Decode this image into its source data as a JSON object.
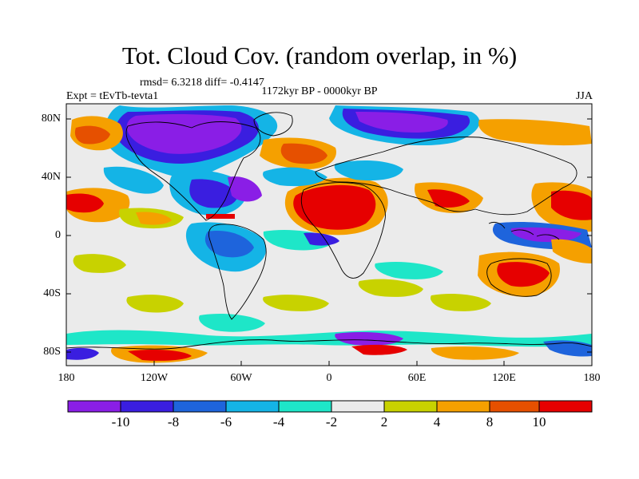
{
  "map": {
    "title": "Tot. Cloud Cov. (random overlap, in %)",
    "stats": "rmsd= 6.3218  diff= -0.4147",
    "period": "1172kyr BP - 0000kyr BP",
    "experiment": "Expt = tEvTb-tevta1",
    "season": "JJA",
    "lat_labels": [
      "80N",
      "40N",
      "0",
      "40S",
      "80S"
    ],
    "lon_labels": [
      "180",
      "120W",
      "60W",
      "0",
      "60E",
      "120E",
      "180"
    ]
  },
  "colorbar": {
    "labels": [
      "-10",
      "-8",
      "-6",
      "-4",
      "-2",
      "2",
      "4",
      "8",
      "10"
    ],
    "colors": [
      "#8a1ee6",
      "#3a1ee0",
      "#1e64dc",
      "#14b4e6",
      "#1ee6c8",
      "#ebebeb",
      "#c8d200",
      "#f5a000",
      "#e65000",
      "#e60000"
    ]
  },
  "palette": {
    "neutral": "#ebebeb",
    "deep_purple": "#8a1ee6",
    "blue": "#3a1ee0",
    "mid_blue": "#1e64dc",
    "sky": "#14b4e6",
    "aqua": "#1ee6c8",
    "yellow": "#c8d200",
    "orange": "#f5a000",
    "dark_orange": "#e65000",
    "red": "#e60000",
    "coast": "#000000"
  }
}
